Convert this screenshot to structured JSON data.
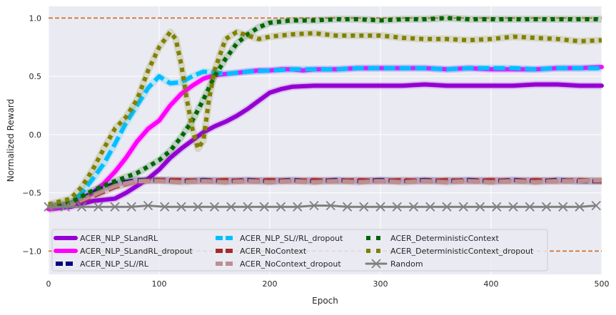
{
  "chart_data": {
    "type": "line",
    "title": "",
    "xlabel": "Epoch",
    "ylabel": "Normalized Reward",
    "xlim": [
      0,
      500
    ],
    "ylim": [
      -1.2,
      1.1
    ],
    "xticks": [
      0,
      100,
      200,
      300,
      400,
      500
    ],
    "xtick_labels": [
      "0",
      "100",
      "200",
      "300",
      "400",
      "500"
    ],
    "yticks": [
      -1.0,
      -0.5,
      0.0,
      0.5,
      1.0
    ],
    "ytick_labels": [
      "−1.0",
      "−0.5",
      "0.0",
      "0.5",
      "1.0"
    ],
    "grid": true,
    "background": "#eaeaf2",
    "legend_position": "lower-left",
    "reference_lines": [
      {
        "y": 1.0,
        "color": "#d2691e",
        "style": "dashed"
      },
      {
        "y": -1.0,
        "color": "#d2691e",
        "style": "dashed"
      }
    ],
    "series": [
      {
        "name": "ACER_NLP_SLandRL",
        "color": "#9400d3",
        "style": "solid",
        "x": [
          0,
          20,
          40,
          60,
          70,
          80,
          90,
          100,
          110,
          120,
          130,
          140,
          150,
          160,
          170,
          180,
          190,
          200,
          210,
          220,
          240,
          260,
          280,
          300,
          320,
          340,
          360,
          380,
          400,
          420,
          440,
          460,
          480,
          500
        ],
        "y": [
          -0.64,
          -0.62,
          -0.57,
          -0.55,
          -0.5,
          -0.44,
          -0.38,
          -0.3,
          -0.2,
          -0.12,
          -0.05,
          0.02,
          0.07,
          0.11,
          0.16,
          0.22,
          0.29,
          0.36,
          0.39,
          0.41,
          0.42,
          0.42,
          0.42,
          0.42,
          0.42,
          0.43,
          0.42,
          0.42,
          0.42,
          0.42,
          0.43,
          0.43,
          0.42,
          0.42
        ]
      },
      {
        "name": "ACER_NLP_SLandRL_dropout",
        "color": "#ff00ff",
        "style": "solid",
        "x": [
          0,
          20,
          40,
          50,
          60,
          70,
          80,
          90,
          100,
          110,
          120,
          130,
          140,
          150,
          160,
          170,
          180,
          190,
          200,
          210,
          220,
          230,
          240,
          260,
          280,
          300,
          320,
          340,
          360,
          380,
          400,
          420,
          440,
          460,
          480,
          500
        ],
        "y": [
          -0.64,
          -0.6,
          -0.5,
          -0.42,
          -0.32,
          -0.2,
          -0.06,
          0.05,
          0.12,
          0.25,
          0.35,
          0.42,
          0.48,
          0.51,
          0.52,
          0.53,
          0.54,
          0.55,
          0.55,
          0.56,
          0.56,
          0.55,
          0.56,
          0.56,
          0.57,
          0.57,
          0.57,
          0.57,
          0.56,
          0.57,
          0.56,
          0.56,
          0.56,
          0.57,
          0.57,
          0.58
        ]
      },
      {
        "name": "ACER_NLP_SL//RL",
        "color": "#000080",
        "style": "dashed",
        "x": [
          0,
          20,
          40,
          60,
          80,
          100,
          120,
          140,
          160,
          180,
          200,
          220,
          240,
          260,
          280,
          300,
          320,
          340,
          360,
          380,
          400,
          420,
          440,
          460,
          480,
          500
        ],
        "y": [
          -0.62,
          -0.6,
          -0.5,
          -0.42,
          -0.39,
          -0.39,
          -0.4,
          -0.39,
          -0.4,
          -0.39,
          -0.4,
          -0.39,
          -0.4,
          -0.39,
          -0.4,
          -0.39,
          -0.4,
          -0.39,
          -0.4,
          -0.39,
          -0.4,
          -0.39,
          -0.4,
          -0.39,
          -0.4,
          -0.4
        ]
      },
      {
        "name": "ACER_NLP_SL//RL_dropout",
        "color": "#00bfff",
        "style": "dashed",
        "x": [
          0,
          20,
          30,
          40,
          50,
          60,
          70,
          80,
          90,
          100,
          110,
          120,
          130,
          140,
          160,
          180,
          200,
          220,
          240,
          260,
          280,
          300,
          320,
          340,
          360,
          380,
          400,
          420,
          440,
          460,
          480,
          500
        ],
        "y": [
          -0.62,
          -0.6,
          -0.5,
          -0.38,
          -0.25,
          -0.08,
          0.1,
          0.25,
          0.4,
          0.5,
          0.44,
          0.45,
          0.5,
          0.54,
          0.52,
          0.54,
          0.55,
          0.56,
          0.56,
          0.56,
          0.57,
          0.57,
          0.57,
          0.57,
          0.56,
          0.57,
          0.57,
          0.57,
          0.56,
          0.57,
          0.57,
          0.57
        ]
      },
      {
        "name": "ACER_NoContext",
        "color": "#a52a2a",
        "style": "dashed",
        "x": [
          0,
          20,
          40,
          60,
          80,
          100,
          120,
          140,
          160,
          180,
          200,
          220,
          240,
          260,
          280,
          300,
          320,
          340,
          360,
          380,
          400,
          420,
          440,
          460,
          480,
          500
        ],
        "y": [
          -0.62,
          -0.6,
          -0.53,
          -0.45,
          -0.4,
          -0.39,
          -0.39,
          -0.4,
          -0.39,
          -0.4,
          -0.39,
          -0.4,
          -0.39,
          -0.4,
          -0.39,
          -0.4,
          -0.39,
          -0.4,
          -0.39,
          -0.4,
          -0.39,
          -0.4,
          -0.39,
          -0.4,
          -0.39,
          -0.4
        ]
      },
      {
        "name": "ACER_NoContext_dropout",
        "color": "#bc8f8f",
        "style": "dashed",
        "x": [
          0,
          20,
          40,
          60,
          80,
          100,
          120,
          140,
          160,
          180,
          200,
          220,
          240,
          260,
          280,
          300,
          320,
          340,
          360,
          380,
          400,
          420,
          440,
          460,
          480,
          500
        ],
        "y": [
          -0.62,
          -0.6,
          -0.52,
          -0.44,
          -0.4,
          -0.4,
          -0.41,
          -0.4,
          -0.41,
          -0.4,
          -0.41,
          -0.4,
          -0.41,
          -0.4,
          -0.41,
          -0.4,
          -0.41,
          -0.4,
          -0.41,
          -0.4,
          -0.41,
          -0.4,
          -0.41,
          -0.4,
          -0.4,
          -0.39
        ]
      },
      {
        "name": "ACER_DeterministicContext",
        "color": "#006400",
        "style": "dotted",
        "x": [
          0,
          20,
          40,
          60,
          80,
          100,
          110,
          120,
          130,
          140,
          150,
          160,
          170,
          180,
          190,
          200,
          220,
          240,
          260,
          280,
          300,
          320,
          340,
          360,
          380,
          400,
          420,
          440,
          460,
          480,
          500
        ],
        "y": [
          -0.61,
          -0.58,
          -0.48,
          -0.4,
          -0.33,
          -0.22,
          -0.14,
          -0.02,
          0.12,
          0.3,
          0.5,
          0.65,
          0.78,
          0.86,
          0.92,
          0.96,
          0.98,
          0.98,
          0.99,
          0.99,
          0.98,
          0.99,
          0.99,
          1.0,
          0.99,
          0.99,
          0.99,
          0.99,
          0.99,
          0.99,
          0.99
        ]
      },
      {
        "name": "ACER_DeterministicContext_dropout",
        "color": "#808000",
        "style": "dotted",
        "x": [
          0,
          20,
          30,
          40,
          50,
          60,
          70,
          80,
          90,
          100,
          110,
          115,
          120,
          125,
          130,
          135,
          140,
          145,
          150,
          160,
          170,
          180,
          190,
          200,
          220,
          240,
          260,
          280,
          300,
          320,
          340,
          360,
          380,
          400,
          420,
          440,
          460,
          480,
          500
        ],
        "y": [
          -0.6,
          -0.55,
          -0.45,
          -0.3,
          -0.12,
          0.05,
          0.15,
          0.3,
          0.55,
          0.75,
          0.88,
          0.82,
          0.6,
          0.3,
          0.05,
          -0.12,
          -0.05,
          0.3,
          0.55,
          0.82,
          0.88,
          0.85,
          0.82,
          0.84,
          0.86,
          0.87,
          0.85,
          0.85,
          0.85,
          0.83,
          0.82,
          0.82,
          0.81,
          0.82,
          0.84,
          0.83,
          0.82,
          0.8,
          0.81
        ]
      },
      {
        "name": "Random",
        "color": "#808080",
        "style": "solid-x-marker",
        "x": [
          0,
          15,
          30,
          45,
          60,
          75,
          90,
          105,
          120,
          135,
          150,
          165,
          180,
          195,
          210,
          225,
          240,
          255,
          270,
          285,
          300,
          315,
          330,
          345,
          360,
          375,
          390,
          405,
          420,
          435,
          450,
          465,
          480,
          495
        ],
        "y": [
          -0.62,
          -0.62,
          -0.62,
          -0.62,
          -0.62,
          -0.62,
          -0.61,
          -0.62,
          -0.62,
          -0.62,
          -0.62,
          -0.62,
          -0.62,
          -0.62,
          -0.62,
          -0.62,
          -0.61,
          -0.61,
          -0.62,
          -0.62,
          -0.62,
          -0.62,
          -0.62,
          -0.62,
          -0.62,
          -0.62,
          -0.62,
          -0.62,
          -0.62,
          -0.62,
          -0.62,
          -0.62,
          -0.62,
          -0.61
        ]
      }
    ]
  }
}
